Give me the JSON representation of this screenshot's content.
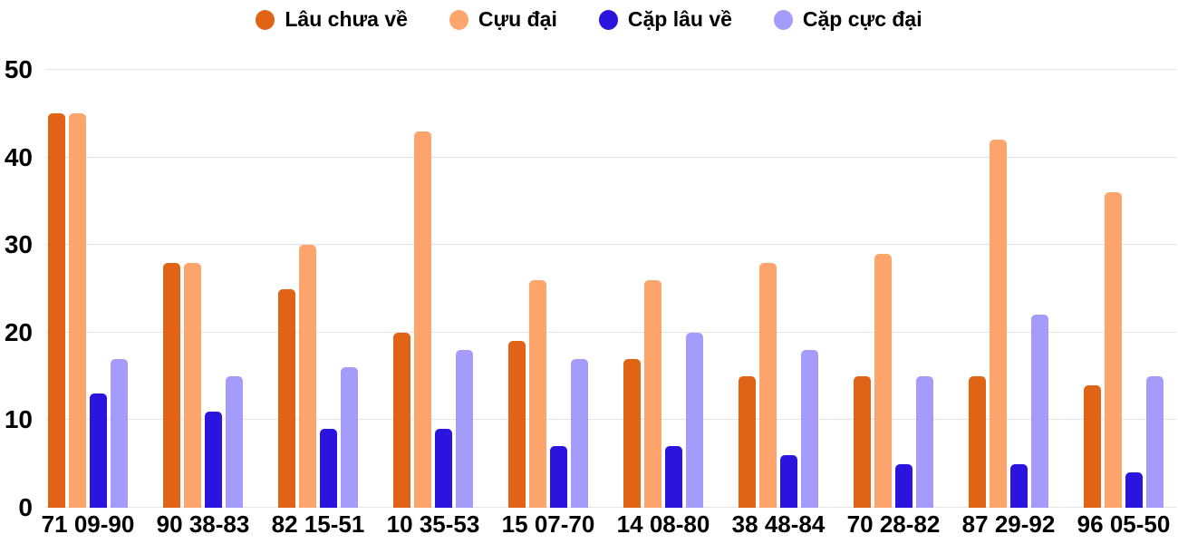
{
  "chart_data": {
    "type": "bar",
    "title": "",
    "xlabel": "",
    "ylabel": "",
    "categories": [
      "71 09-90",
      "90 38-83",
      "82 15-51",
      "10 35-53",
      "15 07-70",
      "14 08-80",
      "38 48-84",
      "70 28-82",
      "87 29-92",
      "96 05-50"
    ],
    "series": [
      {
        "name": "Lâu chưa về",
        "color": "#e06316",
        "values": [
          45,
          28,
          25,
          20,
          19,
          17,
          15,
          15,
          15,
          14
        ]
      },
      {
        "name": "Cựu đại",
        "color": "#fda56c",
        "values": [
          45,
          28,
          30,
          43,
          26,
          26,
          28,
          29,
          42,
          36
        ]
      },
      {
        "name": "Cặp lâu về",
        "color": "#2b14de",
        "values": [
          13,
          11,
          9,
          9,
          7,
          7,
          6,
          5,
          5,
          4
        ]
      },
      {
        "name": "Cặp cực đại",
        "color": "#a49bfa",
        "values": [
          17,
          15,
          16,
          18,
          17,
          20,
          18,
          15,
          22,
          15
        ]
      }
    ],
    "ylim": [
      0,
      50
    ],
    "yticks": [
      0,
      10,
      20,
      30,
      40,
      50
    ],
    "grid": "horizontal",
    "gridline_color": "#e4e4e4",
    "legend_position": "top",
    "legend_marker": "circle",
    "background_color": "#ffffff",
    "text_color": "#000000"
  }
}
